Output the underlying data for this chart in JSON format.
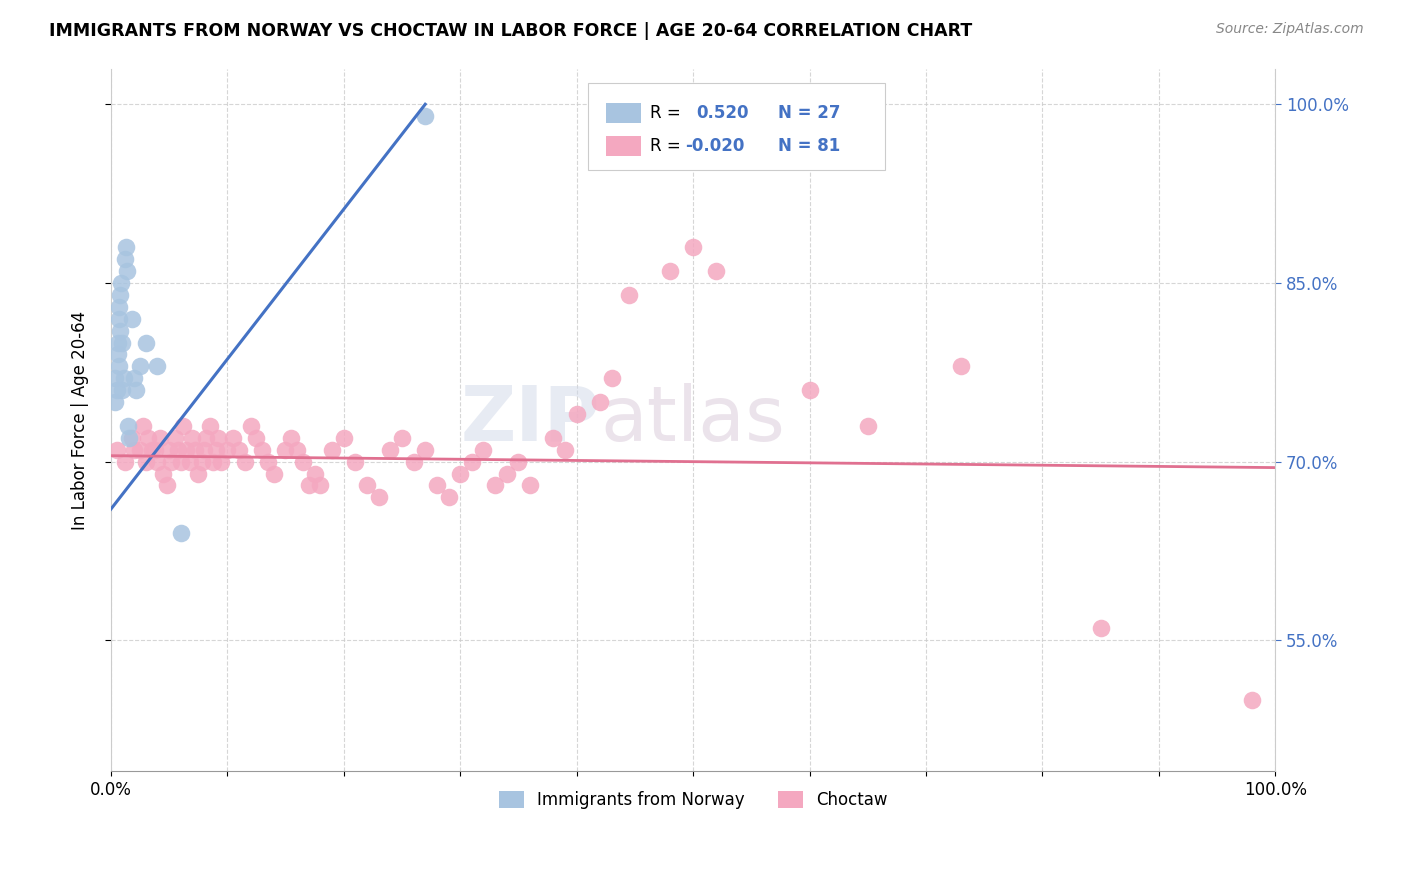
{
  "title": "IMMIGRANTS FROM NORWAY VS CHOCTAW IN LABOR FORCE | AGE 20-64 CORRELATION CHART",
  "source": "Source: ZipAtlas.com",
  "ylabel": "In Labor Force | Age 20-64",
  "xlim": [
    0.0,
    1.0
  ],
  "ylim": [
    0.44,
    1.03
  ],
  "norway_color": "#a8c4e0",
  "choctaw_color": "#f4a8c0",
  "norway_line_color": "#4472c4",
  "choctaw_line_color": "#e07090",
  "norway_R": 0.52,
  "norway_N": 27,
  "choctaw_R": -0.02,
  "choctaw_N": 81,
  "norway_x": [
    0.004,
    0.004,
    0.005,
    0.006,
    0.006,
    0.007,
    0.007,
    0.007,
    0.008,
    0.008,
    0.009,
    0.01,
    0.01,
    0.011,
    0.012,
    0.013,
    0.014,
    0.015,
    0.016,
    0.018,
    0.02,
    0.022,
    0.025,
    0.03,
    0.04,
    0.06,
    0.27
  ],
  "norway_y": [
    0.77,
    0.75,
    0.76,
    0.8,
    0.79,
    0.78,
    0.82,
    0.83,
    0.81,
    0.84,
    0.85,
    0.76,
    0.8,
    0.77,
    0.87,
    0.88,
    0.86,
    0.73,
    0.72,
    0.82,
    0.77,
    0.76,
    0.78,
    0.8,
    0.78,
    0.64,
    0.99
  ],
  "choctaw_x": [
    0.005,
    0.012,
    0.018,
    0.02,
    0.025,
    0.028,
    0.03,
    0.032,
    0.035,
    0.038,
    0.04,
    0.042,
    0.045,
    0.048,
    0.05,
    0.052,
    0.055,
    0.058,
    0.06,
    0.062,
    0.065,
    0.068,
    0.07,
    0.072,
    0.075,
    0.078,
    0.08,
    0.082,
    0.085,
    0.088,
    0.09,
    0.092,
    0.095,
    0.1,
    0.105,
    0.11,
    0.115,
    0.12,
    0.125,
    0.13,
    0.135,
    0.14,
    0.15,
    0.155,
    0.16,
    0.165,
    0.17,
    0.175,
    0.18,
    0.19,
    0.2,
    0.21,
    0.22,
    0.23,
    0.24,
    0.25,
    0.26,
    0.27,
    0.28,
    0.29,
    0.3,
    0.31,
    0.32,
    0.33,
    0.34,
    0.35,
    0.36,
    0.38,
    0.39,
    0.4,
    0.42,
    0.43,
    0.445,
    0.48,
    0.5,
    0.52,
    0.6,
    0.65,
    0.73,
    0.85,
    0.98
  ],
  "choctaw_y": [
    0.71,
    0.7,
    0.72,
    0.71,
    0.71,
    0.73,
    0.7,
    0.72,
    0.71,
    0.71,
    0.7,
    0.72,
    0.69,
    0.68,
    0.71,
    0.7,
    0.72,
    0.71,
    0.7,
    0.73,
    0.71,
    0.7,
    0.72,
    0.71,
    0.69,
    0.7,
    0.71,
    0.72,
    0.73,
    0.7,
    0.71,
    0.72,
    0.7,
    0.71,
    0.72,
    0.71,
    0.7,
    0.73,
    0.72,
    0.71,
    0.7,
    0.69,
    0.71,
    0.72,
    0.71,
    0.7,
    0.68,
    0.69,
    0.68,
    0.71,
    0.72,
    0.7,
    0.68,
    0.67,
    0.71,
    0.72,
    0.7,
    0.71,
    0.68,
    0.67,
    0.69,
    0.7,
    0.71,
    0.68,
    0.69,
    0.7,
    0.68,
    0.72,
    0.71,
    0.74,
    0.75,
    0.77,
    0.84,
    0.86,
    0.88,
    0.86,
    0.76,
    0.73,
    0.78,
    0.56,
    0.5
  ],
  "norway_line_x": [
    0.0,
    0.27
  ],
  "norway_line_y": [
    0.66,
    1.0
  ],
  "choctaw_line_x": [
    0.0,
    1.0
  ],
  "choctaw_line_y": [
    0.705,
    0.695
  ]
}
